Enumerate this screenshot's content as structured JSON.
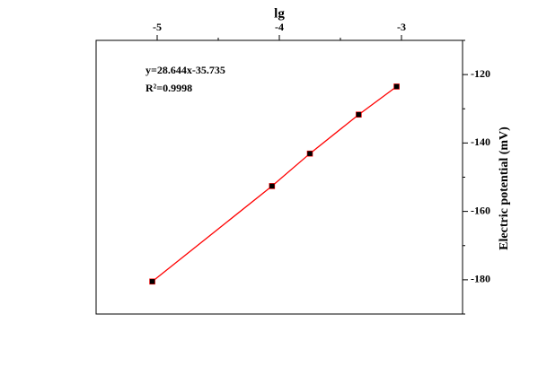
{
  "chart_data": {
    "type": "line",
    "title": "lg",
    "y_label": "Electric potential (mV)",
    "annotations": [
      "y=28.644x-35.735",
      "R²=0.9998"
    ],
    "x": [
      -5.04,
      -4.06,
      -3.75,
      -3.35,
      -3.04
    ],
    "series": [
      {
        "color": "#ff0000",
        "marker_color": "#000000",
        "values": [
          -180.5,
          -152.6,
          -143.1,
          -131.7,
          -123.5
        ]
      }
    ],
    "xlim": [
      -5.5,
      -2.5
    ],
    "xticks": [
      -5,
      -4,
      -3
    ],
    "xminor": [
      -4.5,
      -3.5
    ],
    "ylim": [
      -190,
      -110
    ],
    "yticks": [
      -120,
      -140,
      -160,
      -180
    ],
    "yminor": [
      -110,
      -130,
      -150,
      -170,
      -190
    ],
    "grid": false
  }
}
